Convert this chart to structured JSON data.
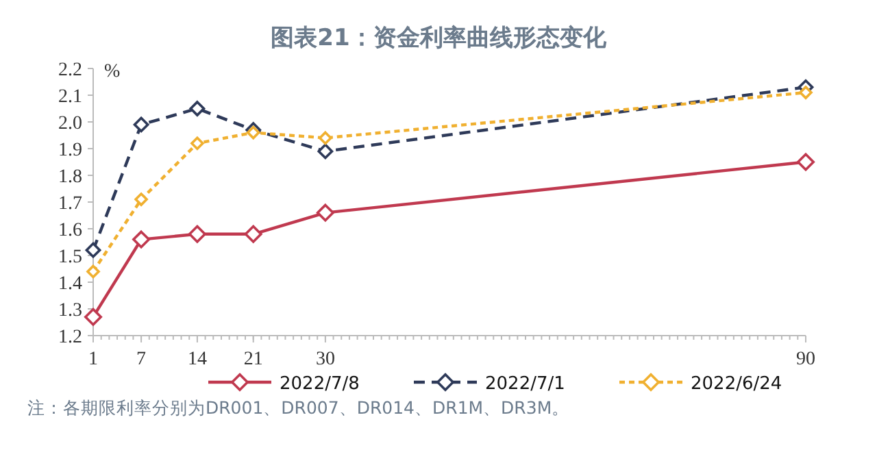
{
  "chart_data": {
    "type": "line",
    "title": "图表21：资金利率曲线形态变化",
    "ylabel": "%",
    "x": [
      1,
      7,
      14,
      21,
      30,
      90
    ],
    "xlim": [
      1,
      90
    ],
    "xticks": [
      1,
      7,
      14,
      21,
      30,
      90
    ],
    "ylim": [
      1.2,
      2.2
    ],
    "yticks": [
      {
        "value": 1.2,
        "label": "1.2"
      },
      {
        "value": 1.3,
        "label": "1.3"
      },
      {
        "value": 1.4,
        "label": "1.4"
      },
      {
        "value": 1.5,
        "label": "1.5"
      },
      {
        "value": 1.6,
        "label": "1.6"
      },
      {
        "value": 1.7,
        "label": "1.7"
      },
      {
        "value": 1.8,
        "label": "1.8"
      },
      {
        "value": 1.9,
        "label": "1.9"
      },
      {
        "value": 2.0,
        "label": "2.0"
      },
      {
        "value": 2.1,
        "label": "2.1"
      },
      {
        "value": 2.2,
        "label": "2.2"
      }
    ],
    "grid": false,
    "legend": "bottom",
    "marker": "diamond",
    "series": [
      {
        "name": "2022/7/8",
        "color": "#c0394f",
        "line_style": "solid",
        "values": [
          1.27,
          1.56,
          1.58,
          1.58,
          1.66,
          1.85
        ]
      },
      {
        "name": "2022/7/1",
        "color": "#2e3a59",
        "line_style": "dashed",
        "values": [
          1.52,
          1.99,
          2.05,
          1.97,
          1.89,
          2.13
        ]
      },
      {
        "name": "2022/6/24",
        "color": "#f0b030",
        "line_style": "dotted",
        "values": [
          1.44,
          1.71,
          1.92,
          1.96,
          1.94,
          2.11
        ]
      }
    ],
    "annotations": [
      "注：各期限利率分别为DR001、DR007、DR014、DR1M、DR3M。"
    ]
  }
}
